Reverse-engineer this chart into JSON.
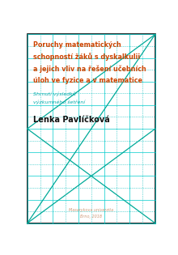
{
  "title_line1": "Poruchy matematických",
  "title_line2": "schopností žáků s dyskalkulii",
  "title_line3": "a jejich vliv na řešení učebních",
  "title_line4": "úloh ve fyzice a v matematice",
  "subtitle_line1": "Shrnutí výsledků",
  "subtitle_line2": "výzkumného šetření",
  "author": "Lenka Pavlíčková",
  "publisher_line1": "Masarykova univerzita",
  "publisher_line2": "Brno, 2018",
  "bg_color": "#ffffff",
  "border_color": "#111111",
  "grid_color_solid": "#00cccc",
  "grid_color_dot": "#00bbbb",
  "title_color": "#cc4400",
  "subtitle_color": "#00aaaa",
  "author_color": "#111111",
  "publisher_color": "#cc9977",
  "line_color": "#00aa99",
  "num_grid_cols": 5,
  "num_grid_rows": 8
}
